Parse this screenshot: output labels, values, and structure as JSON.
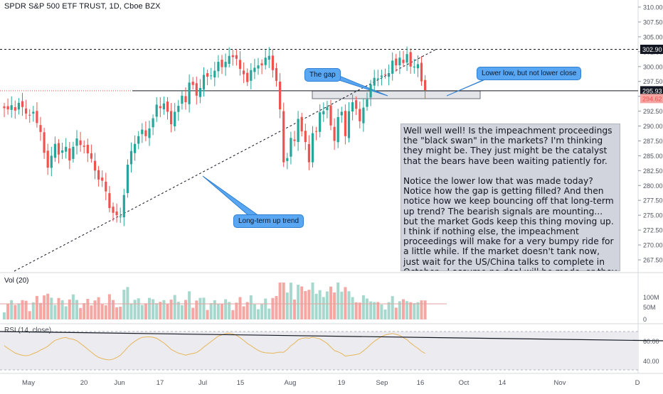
{
  "header": {
    "title": "SPDR S&P 500 ETF TRUST, 1D, Cboe BZX"
  },
  "price_axis": {
    "ticks": [
      "310.00",
      "307.50",
      "305.00",
      "302.50",
      "300.00",
      "297.50",
      "295.00",
      "292.50",
      "290.00",
      "287.50",
      "285.00",
      "282.50",
      "280.00",
      "277.50",
      "275.00",
      "272.50",
      "270.00",
      "267.50"
    ],
    "badges": [
      {
        "label": "302.90",
        "value": 302.9,
        "bg": "#131722",
        "fg": "#ffffff"
      },
      {
        "label": "295.93",
        "value": 295.93,
        "bg": "#131722",
        "fg": "#ffffff"
      },
      {
        "label": "294.62",
        "value": 294.62,
        "bg": "#f6a6a2",
        "fg": "#ef5350"
      }
    ]
  },
  "time_axis": {
    "labels": [
      "May",
      "20",
      "Jun",
      "17",
      "Jul",
      "15",
      "Aug",
      "19",
      "Sep",
      "16",
      "Oct",
      "14",
      "Nov",
      "D"
    ]
  },
  "volume": {
    "title": "Vol (20)",
    "ticks": [
      "100M",
      "50M",
      "0"
    ]
  },
  "rsi": {
    "title": "RSI (14, close)",
    "ticks": [
      "60.00",
      "40.00"
    ]
  },
  "annotations": {
    "note": "Well well well! Is the impeachment proceedings the \"black swan\" in the markets? I'm thinking they might be. They just might be the catalyst that the bears have been waiting patiently for.\n\nNotice the lower low that was made today? Notice how the gap is getting filled? And then notice how we keep bouncing off that long-term up trend? The bearish signals are mounting... but the market Gods keep this thing moving up.\nI think if nothing else, the impeachment proceedings will make for a very bumpy ride for a little while. If the market doesn't tank now, just wait for the US/China talks to complete in October - I assume no deal will be made, or they will get cancelled or pushed back.",
    "gap_label": "The gap",
    "lower_low_label": "Lower low, but not lower close",
    "trend_label": "Long-term up trend"
  },
  "colors": {
    "up": "#26a69a",
    "down": "#ef5350",
    "callout": "#59a6f2"
  },
  "chart_data": {
    "type": "candlestick",
    "title": "SPDR S&P 500 ETF TRUST, 1D, Cboe BZX",
    "ylim": [
      265.0,
      311.0
    ],
    "x_labels": [
      "May",
      "20",
      "Jun",
      "17",
      "Jul",
      "15",
      "Aug",
      "19",
      "Sep",
      "16",
      "Oct",
      "14",
      "Nov",
      "D"
    ],
    "series": [
      {
        "name": "SPDR S&P 500 ETF TRUST",
        "close": [
          293.0,
          292.8,
          293.5,
          292.6,
          293.9,
          293.2,
          292.1,
          291.8,
          292.4,
          290.5,
          289.0,
          285.5,
          283.0,
          285.0,
          287.0,
          285.2,
          285.9,
          286.5,
          284.2,
          286.5,
          287.9,
          286.8,
          286.5,
          285.4,
          284.5,
          282.5,
          281.0,
          280.8,
          279.0,
          276.2,
          275.4,
          275.0,
          274.8,
          278.4,
          283.5,
          285.8,
          287.0,
          288.3,
          289.4,
          288.3,
          289.6,
          291.3,
          293.6,
          293.0,
          293.8,
          292.4,
          290.3,
          292.4,
          293.4,
          295.1,
          294.0,
          297.3,
          296.9,
          295.1,
          296.4,
          298.6,
          298.3,
          298.5,
          299.3,
          300.8,
          299.9,
          300.8,
          301.8,
          301.6,
          301.3,
          299.6,
          298.7,
          297.4,
          299.4,
          299.8,
          300.2,
          300.2,
          301.5,
          301.8,
          299.4,
          297.6,
          292.8,
          283.9,
          284.6,
          288.0,
          287.5,
          291.2,
          289.1,
          287.3,
          283.9,
          288.8,
          289.1,
          292.3,
          292.5,
          293.2,
          290.1,
          287.5,
          291.5,
          292.4,
          288.3,
          292.5,
          294.0,
          292.9,
          290.8,
          293.1,
          294.5,
          297.0,
          298.1,
          298.0,
          298.5,
          298.6,
          298.9,
          301.0,
          300.2,
          301.5,
          300.6,
          302.1,
          300.0,
          300.0,
          300.4,
          297.5,
          296.0
        ]
      }
    ],
    "levels": [
      {
        "label": "302.90",
        "value": 302.9
      },
      {
        "label": "295.93",
        "value": 295.93
      }
    ],
    "gap_zone": [
      294.6,
      295.9
    ],
    "volume": {
      "name": "Vol (20)",
      "ticks": [
        "100M",
        "50M",
        "0"
      ]
    },
    "rsi": {
      "name": "RSI (14, close)",
      "ticks": [
        "60.00",
        "40.00"
      ],
      "band": [
        30,
        70
      ]
    }
  }
}
